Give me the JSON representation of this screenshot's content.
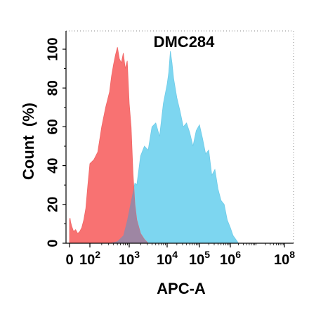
{
  "chart_data": {
    "type": "area",
    "title": "DMC284",
    "xlabel": "APC-A",
    "ylabel": "Count  (%)",
    "x_scale": "biexponential",
    "ylim": [
      0,
      100
    ],
    "y_ticks": [
      "0",
      "20",
      "40",
      "60",
      "80",
      "100"
    ],
    "x_ticks": [
      {
        "base": "0",
        "exp": ""
      },
      {
        "base": "10",
        "exp": "2"
      },
      {
        "base": "10",
        "exp": "3"
      },
      {
        "base": "10",
        "exp": "4"
      },
      {
        "base": "10",
        "exp": "5"
      },
      {
        "base": "10",
        "exp": "6"
      },
      {
        "base": "10",
        "exp": "8"
      }
    ],
    "colors": {
      "control": "#f87272",
      "sample": "#7dd6f0",
      "overlap": "#9488a8"
    },
    "series": [
      {
        "key": "control",
        "x": [
          0.0,
          0.05,
          0.1,
          0.2,
          0.4,
          0.6,
          0.8,
          1.0,
          1.2,
          1.4,
          1.6,
          1.8,
          2.0,
          2.1,
          2.2,
          2.3,
          2.4,
          2.5,
          2.55,
          2.6,
          2.65,
          2.7,
          2.75,
          2.8,
          2.85,
          2.9,
          2.95,
          3.0,
          3.05,
          3.1,
          3.15,
          3.2,
          3.3,
          3.4,
          3.5
        ],
        "y": [
          12,
          13,
          11,
          9,
          6,
          7,
          5,
          6,
          8,
          12,
          18,
          30,
          41,
          43,
          47,
          60,
          70,
          78,
          86,
          92,
          97,
          101,
          95,
          93,
          98,
          90,
          94,
          72,
          60,
          36,
          20,
          12,
          5,
          2,
          0
        ]
      },
      {
        "key": "sample",
        "x": [
          2.5,
          2.7,
          2.85,
          2.95,
          3.05,
          3.15,
          3.2,
          3.3,
          3.4,
          3.5,
          3.6,
          3.7,
          3.8,
          3.9,
          4.0,
          4.05,
          4.1,
          4.15,
          4.2,
          4.3,
          4.4,
          4.5,
          4.6,
          4.7,
          4.8,
          4.9,
          5.0,
          5.1,
          5.2,
          5.3,
          5.4,
          5.5,
          5.6,
          5.7,
          5.8,
          5.9,
          6.0,
          6.1,
          6.2,
          6.3
        ],
        "y": [
          0,
          1,
          4,
          12,
          22,
          31,
          30,
          45,
          50,
          48,
          60,
          62,
          55,
          72,
          82,
          88,
          99,
          93,
          85,
          75,
          68,
          60,
          62,
          57,
          50,
          58,
          61,
          54,
          46,
          48,
          35,
          38,
          28,
          22,
          20,
          12,
          8,
          4,
          2,
          0
        ]
      }
    ]
  }
}
